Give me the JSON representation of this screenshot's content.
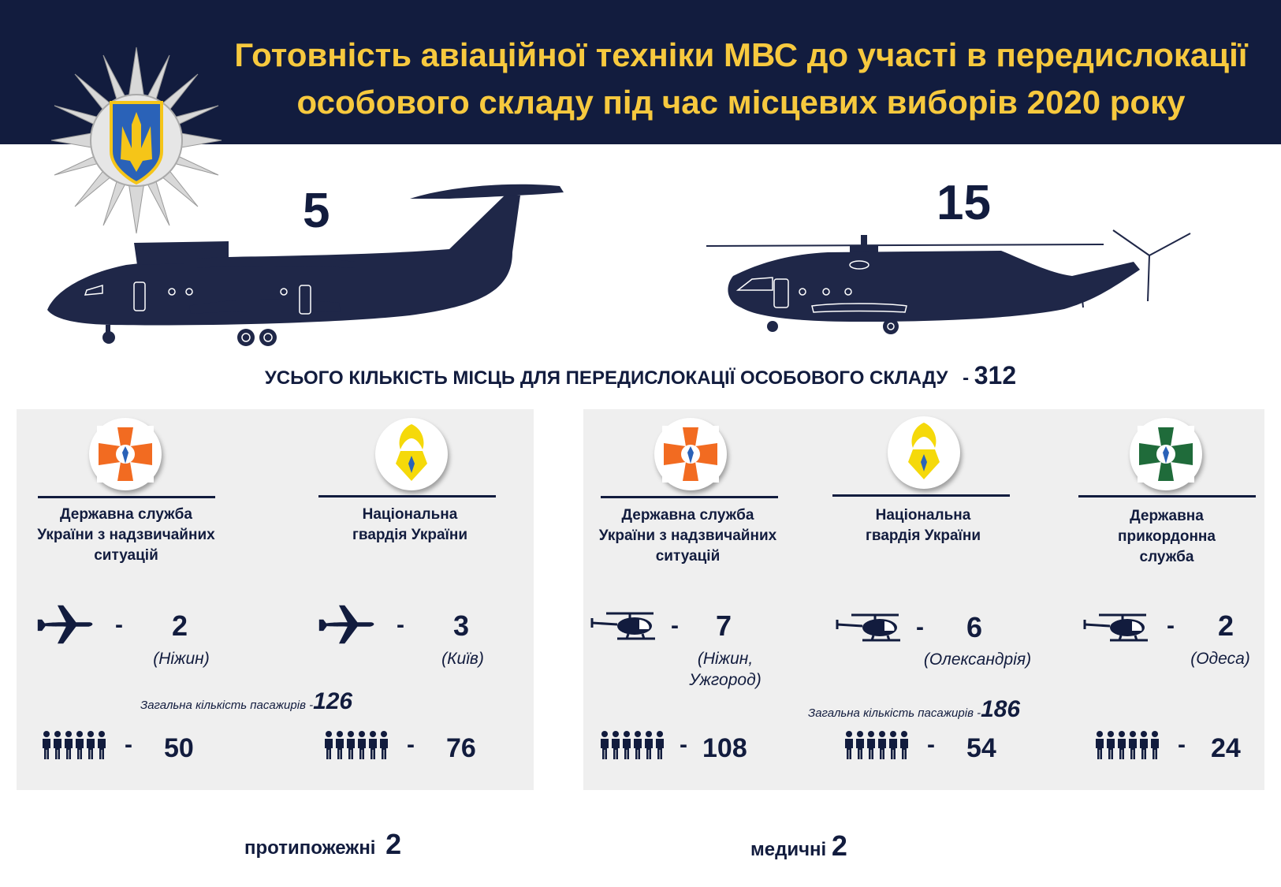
{
  "title_line1": "Готовність авіаційної техніки МВС до участі в передислокації",
  "title_line2": "особового складу під час місцевих виборів 2020 року",
  "airplanes_count": "5",
  "helicopters_count": "15",
  "total_label": "УСЬОГО КІЛЬКІСТЬ МІСЦЬ ДЛЯ ПЕРЕДИСЛОКАЦІЇ ОСОБОВОГО СКЛАДУ",
  "total_dash": "-",
  "total_value": "312",
  "dash": "-",
  "left_panel": {
    "cols": [
      {
        "org_line1": "Державна служба",
        "org_line2": "України з  надзвичайних",
        "org_line3": "ситуацій",
        "count": "2",
        "city_line1": "(Ніжин)",
        "people": "50"
      },
      {
        "org_line1": "Національна",
        "org_line2": "гвардія України",
        "count": "3",
        "city_line1": "(Київ)",
        "people": "76"
      }
    ],
    "passengers_label": "Загальна кількість пасажирів -",
    "passengers_value": "126"
  },
  "right_panel": {
    "cols": [
      {
        "org_line1": "Державна служба",
        "org_line2": "України з  надзвичайних",
        "org_line3": "ситуацій",
        "count": "7",
        "city_line1": "(Ніжин,",
        "city_line2": "Ужгород)",
        "people": "108"
      },
      {
        "org_line1": "Національна",
        "org_line2": "гвардія України",
        "count": "6",
        "city_line1": "(Олександрія)",
        "people": "54"
      },
      {
        "org_line1": "Державна",
        "org_line2": "прикордонна",
        "org_line3": "служба",
        "count": "2",
        "city_line1": "(Одеса)",
        "people": "24"
      }
    ],
    "passengers_label": "Загальна кількість пасажирів -",
    "passengers_value": "186"
  },
  "footer": {
    "fire_label": "протипожежні",
    "fire_value": "2",
    "medical_label": "медичні",
    "medical_value": "2"
  },
  "colors": {
    "navy": "#121c3e",
    "gold": "#f7c93e",
    "panel": "#efefef",
    "dsns_orange": "#f26b21",
    "border_green": "#1f6b3a",
    "ngu_yellow": "#f5d90a"
  },
  "icons": [
    "ministry-star-emblem",
    "airplane-silhouette",
    "helicopter-silhouette",
    "dsns-emblem",
    "ngu-emblem",
    "dpsu-emblem",
    "plane-icon",
    "helicopter-icon",
    "people-icon"
  ]
}
